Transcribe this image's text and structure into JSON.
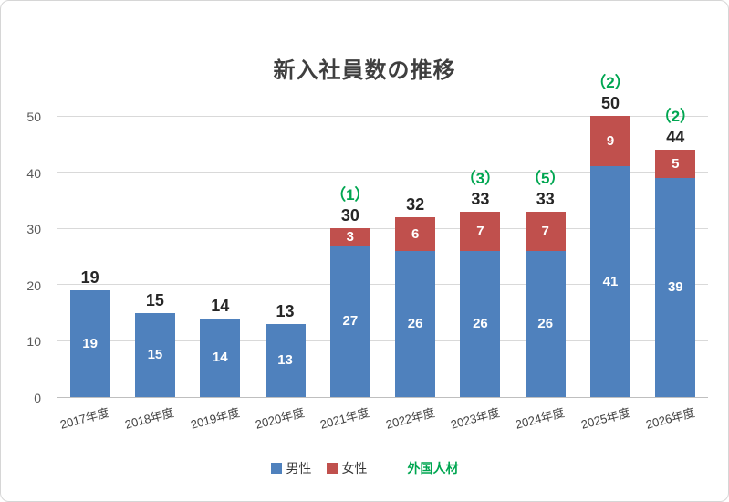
{
  "chart_data": {
    "type": "bar",
    "stacked": true,
    "title": "新入社員数の推移",
    "categories": [
      "2017年度",
      "2018年度",
      "2019年度",
      "2020年度",
      "2021年度",
      "2022年度",
      "2023年度",
      "2024年度",
      "2025年度",
      "2026年度"
    ],
    "series": [
      {
        "name": "男性",
        "color": "#4f81bd",
        "values": [
          19,
          15,
          14,
          13,
          27,
          26,
          26,
          26,
          41,
          39
        ]
      },
      {
        "name": "女性",
        "color": "#c0504d",
        "values": [
          0,
          0,
          0,
          0,
          3,
          6,
          7,
          7,
          9,
          5
        ]
      }
    ],
    "totals": [
      19,
      15,
      14,
      13,
      30,
      32,
      33,
      33,
      50,
      44
    ],
    "foreign_series": {
      "name": "外国人材",
      "color": "#00a651",
      "values": [
        null,
        null,
        null,
        null,
        1,
        null,
        3,
        5,
        2,
        2
      ]
    },
    "ylim": [
      0,
      50
    ],
    "yticks": [
      0,
      10,
      20,
      30,
      40,
      50
    ],
    "grid": true,
    "legend_position": "bottom"
  }
}
